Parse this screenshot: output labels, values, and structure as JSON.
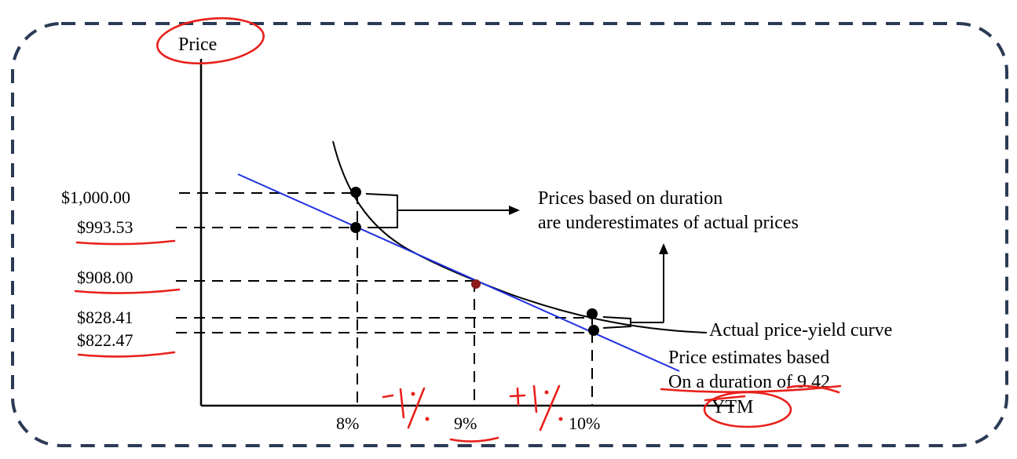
{
  "colors": {
    "frame": "#2b3a55",
    "axis": "#000000",
    "tangent_line": "#1f2fe0",
    "actual_curve": "#000000",
    "annotation_ink": "#e8201a"
  },
  "chart_data": {
    "type": "line",
    "title": "",
    "xlabel": "YTM",
    "ylabel": "Price",
    "x_ticks": [
      "8%",
      "9%",
      "10%"
    ],
    "y_ticks": [
      "$1,000.00",
      "$993.53",
      "$908.00",
      "$828.41",
      "$822.47"
    ],
    "series": [
      {
        "name": "Actual price-yield curve",
        "color": "#000000",
        "points": [
          [
            8,
            1000.0
          ],
          [
            9,
            908.0
          ],
          [
            10,
            828.41
          ]
        ]
      },
      {
        "name": "Price estimates based On a duration of 9.42",
        "color": "#1f2fe0",
        "points": [
          [
            8,
            993.53
          ],
          [
            9,
            908.0
          ],
          [
            10,
            822.47
          ]
        ]
      }
    ],
    "annotations": [
      "Prices based on duration",
      "are underestimates of actual prices",
      "Actual price-yield curve",
      "Price estimates based",
      "On a duration of 9.42"
    ],
    "handwritten": [
      "-1%",
      "+1%"
    ],
    "grid": false,
    "legend": "none"
  }
}
